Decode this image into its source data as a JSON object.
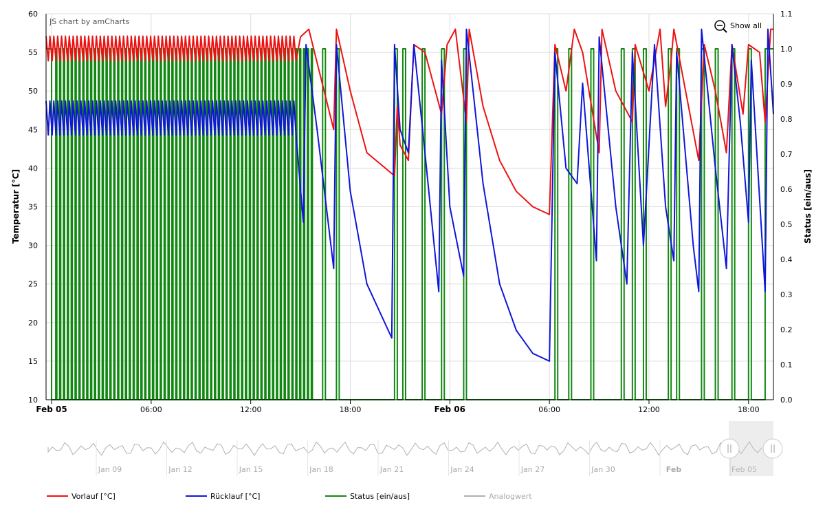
{
  "credit": "JS chart by amCharts",
  "zoom_out_label": "Show all",
  "colors": {
    "vorlauf": "#ee1111",
    "ruecklauf": "#0f16d8",
    "status": "#118811",
    "analog": "#b0b0b0",
    "grid": "#dddddd"
  },
  "chart_data": {
    "type": "line",
    "title": "",
    "x_axis": {
      "type": "datetime",
      "range": [
        "2015-02-04 23:40",
        "2015-02-06 19:30"
      ],
      "ticks": [
        {
          "label": "Feb 05",
          "at": "2015-02-05 00:00",
          "bold": true
        },
        {
          "label": "06:00",
          "at": "2015-02-05 06:00",
          "bold": false
        },
        {
          "label": "12:00",
          "at": "2015-02-05 12:00",
          "bold": false
        },
        {
          "label": "18:00",
          "at": "2015-02-05 18:00",
          "bold": false
        },
        {
          "label": "Feb 06",
          "at": "2015-02-06 00:00",
          "bold": true
        },
        {
          "label": "06:00",
          "at": "2015-02-06 06:00",
          "bold": false
        },
        {
          "label": "12:00",
          "at": "2015-02-06 12:00",
          "bold": false
        },
        {
          "label": "18:00",
          "at": "2015-02-06 18:00",
          "bold": false
        }
      ]
    },
    "y_left": {
      "label": "Temperatur [°C]",
      "range": [
        10,
        60
      ],
      "ticks": [
        "10",
        "15",
        "20",
        "25",
        "30",
        "35",
        "40",
        "45",
        "50",
        "55",
        "60"
      ]
    },
    "y_right": {
      "label": "Status [ein/aus]",
      "range": [
        0,
        1.1
      ],
      "ticks": [
        "0.0",
        "0.1",
        "0.2",
        "0.3",
        "0.4",
        "0.5",
        "0.6",
        "0.7",
        "0.8",
        "0.9",
        "1.0",
        "1.1"
      ]
    },
    "grid": true,
    "series": [
      {
        "name": "Vorlauf [°C]",
        "axis": "left",
        "points": [
          [
            "2015-02-04 23:40",
            56
          ],
          [
            "2015-02-05 00:00",
            55.5
          ],
          [
            "2015-02-05 03:00",
            56
          ],
          [
            "2015-02-05 06:00",
            56.5
          ],
          [
            "2015-02-05 09:00",
            56
          ],
          [
            "2015-02-05 12:00",
            56
          ],
          [
            "2015-02-05 14:30",
            53
          ],
          [
            "2015-02-05 15:00",
            57
          ],
          [
            "2015-02-05 15:30",
            58
          ],
          [
            "2015-02-05 17:00",
            45
          ],
          [
            "2015-02-05 17:10",
            58
          ],
          [
            "2015-02-05 18:00",
            50
          ],
          [
            "2015-02-05 19:00",
            42
          ],
          [
            "2015-02-05 20:40",
            39
          ],
          [
            "2015-02-05 20:50",
            48
          ],
          [
            "2015-02-05 21:00",
            43
          ],
          [
            "2015-02-05 21:30",
            41
          ],
          [
            "2015-02-05 21:50",
            56
          ],
          [
            "2015-02-05 22:30",
            55
          ],
          [
            "2015-02-05 23:30",
            47
          ],
          [
            "2015-02-05 23:50",
            56
          ],
          [
            "2015-02-06 00:20",
            58
          ],
          [
            "2015-02-06 01:00",
            46
          ],
          [
            "2015-02-06 01:10",
            58
          ],
          [
            "2015-02-06 02:00",
            48
          ],
          [
            "2015-02-06 03:00",
            41
          ],
          [
            "2015-02-06 04:00",
            37
          ],
          [
            "2015-02-06 05:00",
            35
          ],
          [
            "2015-02-06 06:00",
            34
          ],
          [
            "2015-02-06 06:20",
            56
          ],
          [
            "2015-02-06 07:00",
            50
          ],
          [
            "2015-02-06 07:30",
            58
          ],
          [
            "2015-02-06 08:00",
            55
          ],
          [
            "2015-02-06 09:00",
            42
          ],
          [
            "2015-02-06 09:10",
            58
          ],
          [
            "2015-02-06 10:00",
            50
          ],
          [
            "2015-02-06 11:00",
            46
          ],
          [
            "2015-02-06 11:10",
            56
          ],
          [
            "2015-02-06 12:00",
            50
          ],
          [
            "2015-02-06 12:40",
            58
          ],
          [
            "2015-02-06 13:00",
            48
          ],
          [
            "2015-02-06 13:20",
            54
          ],
          [
            "2015-02-06 13:30",
            58
          ],
          [
            "2015-02-06 15:00",
            41
          ],
          [
            "2015-02-06 15:20",
            56
          ],
          [
            "2015-02-06 16:00",
            50
          ],
          [
            "2015-02-06 16:40",
            42
          ],
          [
            "2015-02-06 17:00",
            56
          ],
          [
            "2015-02-06 17:40",
            47
          ],
          [
            "2015-02-06 18:00",
            56
          ],
          [
            "2015-02-06 18:40",
            55
          ],
          [
            "2015-02-06 19:00",
            46
          ],
          [
            "2015-02-06 19:20",
            58
          ],
          [
            "2015-02-06 19:30",
            58
          ]
        ]
      },
      {
        "name": "Rücklauf [°C]",
        "axis": "left",
        "points": [
          [
            "2015-02-04 23:40",
            46
          ],
          [
            "2015-02-05 00:00",
            47
          ],
          [
            "2015-02-05 03:00",
            47
          ],
          [
            "2015-02-05 06:00",
            44
          ],
          [
            "2015-02-05 09:00",
            47
          ],
          [
            "2015-02-05 12:00",
            46
          ],
          [
            "2015-02-05 14:30",
            45
          ],
          [
            "2015-02-05 15:10",
            33
          ],
          [
            "2015-02-05 15:20",
            56
          ],
          [
            "2015-02-05 16:00",
            45
          ],
          [
            "2015-02-05 17:00",
            27
          ],
          [
            "2015-02-05 17:10",
            56
          ],
          [
            "2015-02-05 18:00",
            37
          ],
          [
            "2015-02-05 19:00",
            25
          ],
          [
            "2015-02-05 20:30",
            18
          ],
          [
            "2015-02-05 20:40",
            56
          ],
          [
            "2015-02-05 21:00",
            45
          ],
          [
            "2015-02-05 21:30",
            42
          ],
          [
            "2015-02-05 21:50",
            56
          ],
          [
            "2015-02-05 22:30",
            42
          ],
          [
            "2015-02-05 23:20",
            24
          ],
          [
            "2015-02-05 23:30",
            54
          ],
          [
            "2015-02-06 00:00",
            35
          ],
          [
            "2015-02-06 00:50",
            26
          ],
          [
            "2015-02-06 01:00",
            58
          ],
          [
            "2015-02-06 02:00",
            38
          ],
          [
            "2015-02-06 03:00",
            25
          ],
          [
            "2015-02-06 04:00",
            19
          ],
          [
            "2015-02-06 05:00",
            16
          ],
          [
            "2015-02-06 06:00",
            15
          ],
          [
            "2015-02-06 06:20",
            55
          ],
          [
            "2015-02-06 07:00",
            40
          ],
          [
            "2015-02-06 07:40",
            38
          ],
          [
            "2015-02-06 08:00",
            51
          ],
          [
            "2015-02-06 08:50",
            28
          ],
          [
            "2015-02-06 09:00",
            57
          ],
          [
            "2015-02-06 10:00",
            35
          ],
          [
            "2015-02-06 10:40",
            25
          ],
          [
            "2015-02-06 11:00",
            55
          ],
          [
            "2015-02-06 11:40",
            30
          ],
          [
            "2015-02-06 12:20",
            56
          ],
          [
            "2015-02-06 13:00",
            35
          ],
          [
            "2015-02-06 13:30",
            28
          ],
          [
            "2015-02-06 13:40",
            55
          ],
          [
            "2015-02-06 14:40",
            30
          ],
          [
            "2015-02-06 15:00",
            24
          ],
          [
            "2015-02-06 15:10",
            58
          ],
          [
            "2015-02-06 16:00",
            40
          ],
          [
            "2015-02-06 16:40",
            27
          ],
          [
            "2015-02-06 17:00",
            56
          ],
          [
            "2015-02-06 17:30",
            46
          ],
          [
            "2015-02-06 18:00",
            33
          ],
          [
            "2015-02-06 18:10",
            54
          ],
          [
            "2015-02-06 19:00",
            24
          ],
          [
            "2015-02-06 19:10",
            58
          ],
          [
            "2015-02-06 19:30",
            47
          ]
        ]
      },
      {
        "name": "Status [ein/aus]",
        "axis": "right",
        "cycles_summary": "frequent 0/1 switching: ~15 min cycles until 15:40 on Feb 05, then isolated on-pulses",
        "points": [
          [
            "2015-02-04 23:40",
            1
          ],
          [
            "2015-02-05 00:00",
            0
          ],
          [
            "2015-02-05 00:15",
            1
          ],
          [
            "2015-02-05 15:40",
            0
          ],
          [
            "2015-02-05 16:20",
            1
          ],
          [
            "2015-02-05 16:30",
            0
          ],
          [
            "2015-02-05 17:10",
            1
          ],
          [
            "2015-02-05 17:20",
            0
          ],
          [
            "2015-02-05 20:40",
            1
          ],
          [
            "2015-02-05 20:50",
            0
          ],
          [
            "2015-02-05 21:10",
            1
          ],
          [
            "2015-02-05 21:20",
            0
          ],
          [
            "2015-02-05 22:20",
            1
          ],
          [
            "2015-02-05 22:30",
            0
          ],
          [
            "2015-02-05 23:30",
            1
          ],
          [
            "2015-02-05 23:40",
            0
          ],
          [
            "2015-02-06 00:50",
            1
          ],
          [
            "2015-02-06 01:00",
            0
          ],
          [
            "2015-02-06 06:20",
            1
          ],
          [
            "2015-02-06 06:30",
            0
          ],
          [
            "2015-02-06 07:10",
            1
          ],
          [
            "2015-02-06 07:20",
            0
          ],
          [
            "2015-02-06 08:30",
            1
          ],
          [
            "2015-02-06 08:40",
            0
          ],
          [
            "2015-02-06 10:20",
            1
          ],
          [
            "2015-02-06 10:30",
            0
          ],
          [
            "2015-02-06 11:00",
            1
          ],
          [
            "2015-02-06 11:10",
            0
          ],
          [
            "2015-02-06 11:40",
            1
          ],
          [
            "2015-02-06 11:50",
            0
          ],
          [
            "2015-02-06 13:10",
            1
          ],
          [
            "2015-02-06 13:20",
            0
          ],
          [
            "2015-02-06 13:40",
            1
          ],
          [
            "2015-02-06 13:50",
            0
          ],
          [
            "2015-02-06 15:10",
            1
          ],
          [
            "2015-02-06 15:20",
            0
          ],
          [
            "2015-02-06 16:00",
            1
          ],
          [
            "2015-02-06 16:10",
            0
          ],
          [
            "2015-02-06 17:00",
            1
          ],
          [
            "2015-02-06 17:10",
            0
          ],
          [
            "2015-02-06 18:00",
            1
          ],
          [
            "2015-02-06 18:10",
            0
          ],
          [
            "2015-02-06 19:00",
            1
          ],
          [
            "2015-02-06 19:30",
            1
          ]
        ]
      }
    ],
    "scrollbar": {
      "series": "Analogwert",
      "ticks": [
        {
          "label": "Jan 09",
          "bold": false
        },
        {
          "label": "Jan 12",
          "bold": false
        },
        {
          "label": "Jan 15",
          "bold": false
        },
        {
          "label": "Jan 18",
          "bold": false
        },
        {
          "label": "Jan 21",
          "bold": false
        },
        {
          "label": "Jan 24",
          "bold": false
        },
        {
          "label": "Jan 27",
          "bold": false
        },
        {
          "label": "Jan 30",
          "bold": false
        },
        {
          "label": "Feb",
          "bold": true
        },
        {
          "label": "Feb 05",
          "bold": false
        }
      ],
      "selected_range": [
        "Feb 05",
        "Feb 06"
      ]
    },
    "legend": {
      "placement": "bottom",
      "items": [
        {
          "label": "Vorlauf [°C]",
          "color": "#ee1111",
          "enabled": true
        },
        {
          "label": "Rücklauf [°C]",
          "color": "#0f16d8",
          "enabled": true
        },
        {
          "label": "Status [ein/aus]",
          "color": "#118811",
          "enabled": true
        },
        {
          "label": "Analogwert",
          "color": "#b0b0b0",
          "enabled": false
        }
      ]
    }
  }
}
